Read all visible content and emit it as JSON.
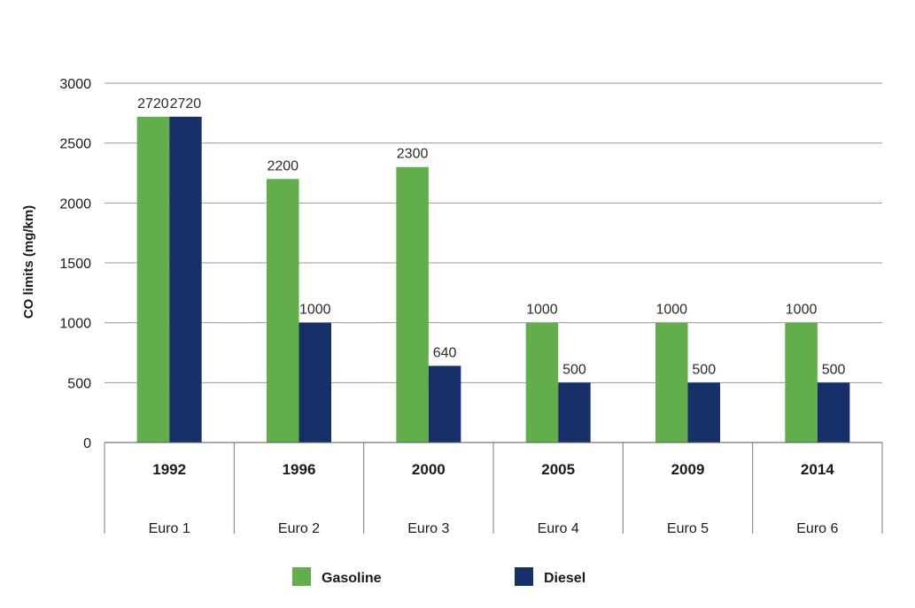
{
  "chart_data": {
    "type": "bar",
    "title": "",
    "xlabel": "",
    "ylabel": "CO limits (mg/km)",
    "ylim": [
      0,
      3000
    ],
    "yticks": [
      0,
      500,
      1000,
      1500,
      2000,
      2500,
      3000
    ],
    "grid": true,
    "categories": [
      "1992",
      "1996",
      "2000",
      "2005",
      "2009",
      "2014"
    ],
    "category_sublabels": [
      "Euro 1",
      "Euro 2",
      "Euro 3",
      "Euro 4",
      "Euro 5",
      "Euro 6"
    ],
    "series": [
      {
        "name": "Gasoline",
        "color": "#62ae4d",
        "values": [
          2720,
          2200,
          2300,
          1000,
          1000,
          1000
        ]
      },
      {
        "name": "Diesel",
        "color": "#17306a",
        "values": [
          2720,
          1000,
          640,
          500,
          500,
          500
        ]
      }
    ],
    "legend_position": "bottom"
  },
  "colors": {
    "grid": "#9a9a9a",
    "plot_background": "#ffffff"
  }
}
